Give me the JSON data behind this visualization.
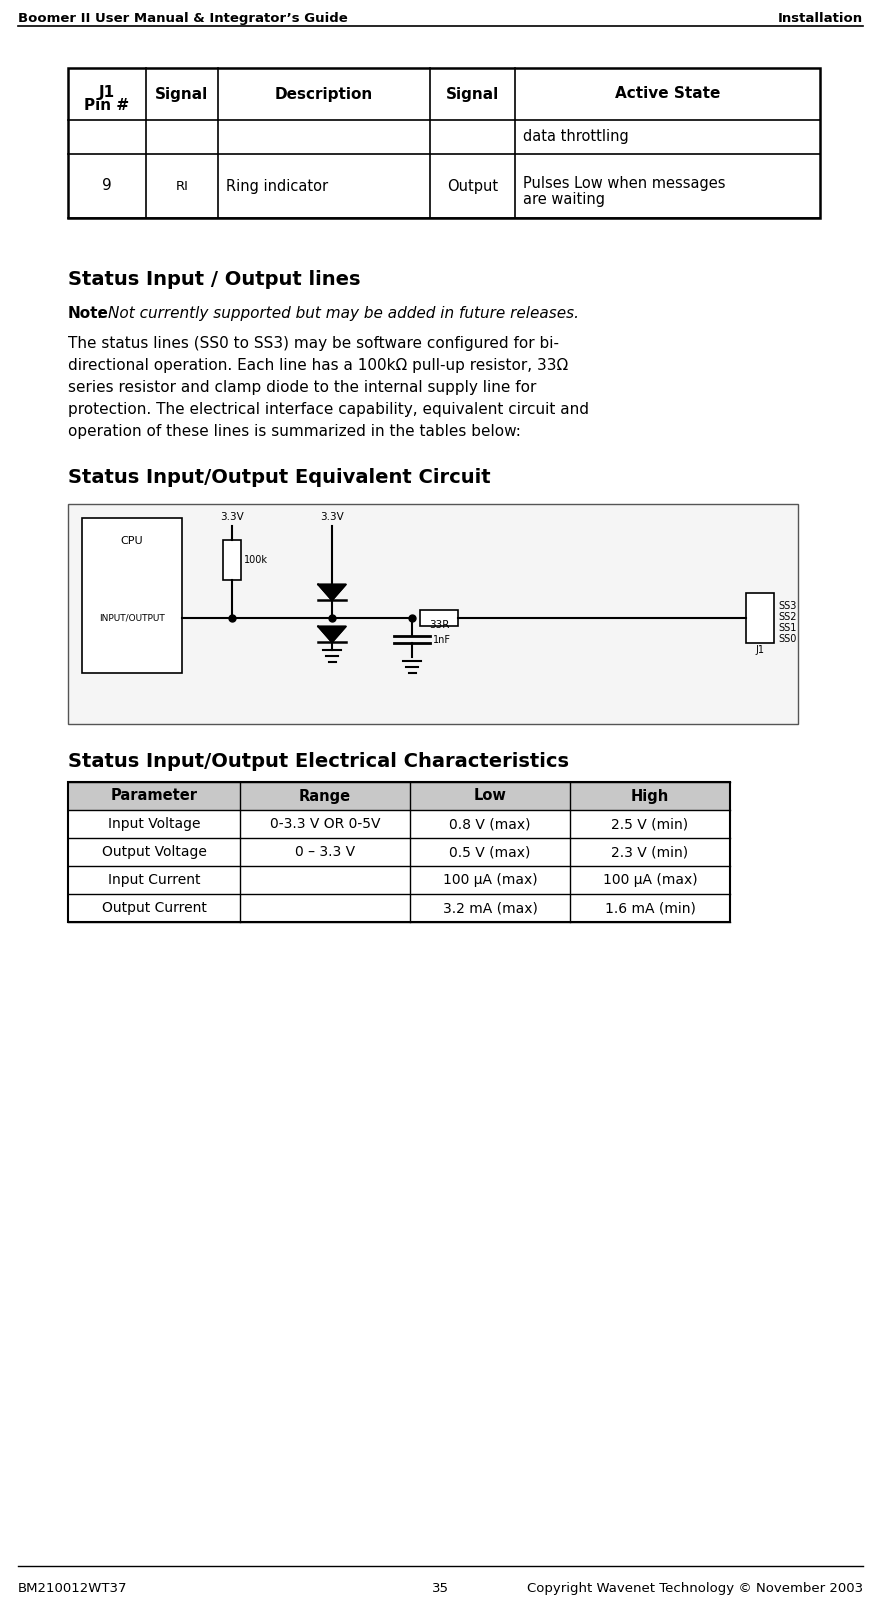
{
  "header_left": "Boomer II User Manual & Integrator’s Guide",
  "header_right": "Installation",
  "footer_left": "BM210012WT37",
  "footer_center": "35",
  "footer_right": "Copyright Wavenet Technology © November 2003",
  "table1_headers_line1": [
    "J1",
    "Signal",
    "Description",
    "Signal",
    "Active State"
  ],
  "table1_headers_line2": [
    "Pin #",
    "",
    "",
    "",
    ""
  ],
  "table1_row1": [
    "",
    "",
    "",
    "",
    "data throttling"
  ],
  "table1_row2_a": [
    "9",
    "RI",
    "Ring indicator",
    "Output",
    "Pulses Low when messages"
  ],
  "table1_row2_b": [
    "",
    "",
    "",
    "",
    "are waiting"
  ],
  "section1_title": "Status Input / Output lines",
  "note_bold": "Note",
  "note_italic": ": Not currently supported but may be added in future releases.",
  "body_lines": [
    "The status lines (SS0 to SS3) may be software configured for bi-",
    "directional operation. Each line has a 100kΩ pull-up resistor, 33Ω",
    "series resistor and clamp diode to the internal supply line for",
    "protection. The electrical interface capability, equivalent circuit and",
    "operation of these lines is summarized in the tables below:"
  ],
  "section2_title": "Status Input/Output Equivalent Circuit",
  "section3_title": "Status Input/Output Electrical Characteristics",
  "table2_headers": [
    "Parameter",
    "Range",
    "Low",
    "High"
  ],
  "table2_rows": [
    [
      "Input Voltage",
      "0-3.3 V OR 0-5V",
      "0.8 V (max)",
      "2.5 V (min)"
    ],
    [
      "Output Voltage",
      "0 – 3.3 V",
      "0.5 V (max)",
      "2.3 V (min)"
    ],
    [
      "Input Current",
      "",
      "100 µA (max)",
      "100 µA (max)"
    ],
    [
      "Output Current",
      "",
      "3.2 mA (max)",
      "1.6 mA (min)"
    ]
  ],
  "bg_color": "#ffffff",
  "text_color": "#000000"
}
